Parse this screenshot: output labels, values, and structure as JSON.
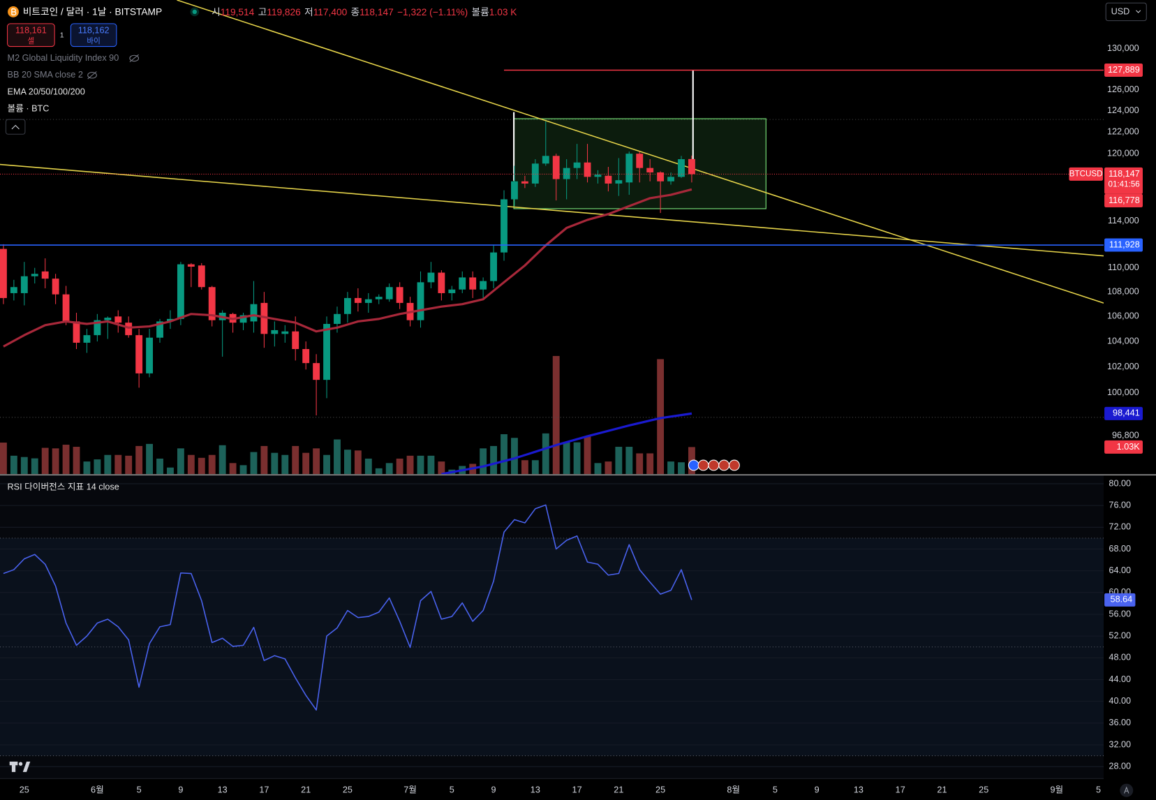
{
  "header": {
    "symbol": "비트코인 / 달러 · 1날 · BITSTAMP",
    "ohlc": [
      {
        "key": "시",
        "value": "119,514"
      },
      {
        "key": "고",
        "value": "119,826"
      },
      {
        "key": "저",
        "value": "117,400"
      },
      {
        "key": "종",
        "value": "118,147"
      }
    ],
    "change": "−1,322 (−1.11%)",
    "volume_key": "볼륨",
    "volume_value": "1.03 K",
    "sell_price": "118,161",
    "sell": "셀",
    "spread": "1",
    "buy_price": "118,162",
    "buy": "바이",
    "currency": "USD"
  },
  "indicators": [
    "M2 Global Liquidity Index 90",
    "BB 20 SMA close 2",
    "EMA 20/50/100/200",
    "볼륨 · BTC"
  ],
  "rsi_title": "RSI 다이버전스 지표 14 close",
  "chart_data": {
    "type": "candlestick",
    "log_scale": true,
    "grid": false,
    "up_color": "#089981",
    "down_color": "#f23645",
    "xlim": [
      -2.33,
      103.5
    ],
    "ylim": [
      94000,
      134910
    ],
    "xticks": [
      {
        "value": 0,
        "label": "25"
      },
      {
        "value": 7,
        "label": "6월"
      },
      {
        "value": 11,
        "label": "5"
      },
      {
        "value": 15,
        "label": "9"
      },
      {
        "value": 19,
        "label": "13"
      },
      {
        "value": 23,
        "label": "17"
      },
      {
        "value": 27,
        "label": "21"
      },
      {
        "value": 31,
        "label": "25"
      },
      {
        "value": 37,
        "label": "7월"
      },
      {
        "value": 41,
        "label": "5"
      },
      {
        "value": 45,
        "label": "9"
      },
      {
        "value": 49,
        "label": "13"
      },
      {
        "value": 53,
        "label": "17"
      },
      {
        "value": 57,
        "label": "21"
      },
      {
        "value": 61,
        "label": "25"
      },
      {
        "value": 68,
        "label": "8월"
      },
      {
        "value": 72,
        "label": "5"
      },
      {
        "value": 76,
        "label": "9"
      },
      {
        "value": 80,
        "label": "13"
      },
      {
        "value": 84,
        "label": "17"
      },
      {
        "value": 88,
        "label": "21"
      },
      {
        "value": 92,
        "label": "25"
      },
      {
        "value": 99,
        "label": "9월"
      },
      {
        "value": 103,
        "label": "5"
      }
    ],
    "yticks": [
      {
        "value": 130000,
        "label": "130,000"
      },
      {
        "value": 126000,
        "label": "126,000"
      },
      {
        "value": 124000,
        "label": "124,000"
      },
      {
        "value": 122000,
        "label": "122,000"
      },
      {
        "value": 120000,
        "label": "120,000"
      },
      {
        "value": 114000,
        "label": "114,000"
      },
      {
        "value": 110000,
        "label": "110,000"
      },
      {
        "value": 108000,
        "label": "108,000"
      },
      {
        "value": 106000,
        "label": "106,000"
      },
      {
        "value": 104000,
        "label": "104,000"
      },
      {
        "value": 102000,
        "label": "102,000"
      },
      {
        "value": 100000,
        "label": "100,000"
      },
      {
        "value": 96800,
        "label": "96,800"
      }
    ],
    "x": [
      -2,
      -1,
      0,
      1,
      2,
      3,
      4,
      5,
      6,
      7,
      8,
      9,
      10,
      11,
      12,
      13,
      14,
      15,
      16,
      17,
      18,
      19,
      20,
      21,
      22,
      23,
      24,
      25,
      26,
      27,
      28,
      29,
      30,
      31,
      32,
      33,
      34,
      35,
      36,
      37,
      38,
      39,
      40,
      41,
      42,
      43,
      44,
      45,
      46,
      47,
      48,
      49,
      50,
      51,
      52,
      53,
      54,
      55,
      56,
      57,
      58,
      59,
      60,
      61,
      62,
      63,
      64
    ],
    "open": [
      111600,
      107900,
      107900,
      109300,
      109700,
      109100,
      107800,
      105600,
      103900,
      104500,
      105700,
      106000,
      105500,
      104500,
      101500,
      104300,
      105600,
      105800,
      110300,
      110200,
      108400,
      105700,
      106200,
      105500,
      105600,
      107100,
      104600,
      104600,
      104800,
      103400,
      102300,
      101000,
      105400,
      106200,
      107500,
      107100,
      107400,
      107400,
      108400,
      107100,
      105700,
      108800,
      109600,
      107900,
      108200,
      109200,
      108200,
      108900,
      111300,
      115900,
      117500,
      117300,
      119100,
      119800,
      117700,
      118700,
      119200,
      117900,
      118000,
      117300,
      117400,
      120000,
      118700,
      118300,
      117500,
      117900,
      119514
    ],
    "high": [
      112000,
      109000,
      110500,
      110000,
      110800,
      109500,
      108500,
      106300,
      105000,
      106200,
      106000,
      106500,
      106000,
      105000,
      105000,
      105800,
      106500,
      110500,
      110400,
      110400,
      108500,
      106500,
      106300,
      106300,
      108900,
      108000,
      105600,
      105300,
      106000,
      104000,
      103000,
      106000,
      106800,
      108000,
      108300,
      107900,
      107800,
      108700,
      108800,
      107600,
      109700,
      110500,
      109800,
      108500,
      109700,
      109700,
      109200,
      111900,
      116700,
      118900,
      118000,
      119500,
      123000,
      120000,
      119500,
      120900,
      120900,
      118500,
      118800,
      119600,
      120200,
      120200,
      119500,
      118400,
      118300,
      119800,
      119826
    ],
    "low": [
      107000,
      107300,
      106900,
      108700,
      108300,
      107000,
      105300,
      103400,
      103100,
      104000,
      104200,
      104700,
      104300,
      100400,
      101200,
      103900,
      105000,
      105300,
      108400,
      108200,
      105200,
      102800,
      104700,
      104900,
      104700,
      103500,
      103600,
      103900,
      102500,
      101800,
      98300,
      99600,
      104700,
      105500,
      106400,
      106300,
      107000,
      107200,
      106600,
      105200,
      105100,
      108300,
      107300,
      107300,
      107900,
      107500,
      107500,
      108300,
      110600,
      115300,
      116900,
      117000,
      118900,
      115800,
      115900,
      117700,
      117400,
      117300,
      116600,
      116200,
      116300,
      117400,
      117500,
      114700,
      117200,
      117800,
      117400
    ],
    "close": [
      107500,
      108400,
      109300,
      109500,
      109100,
      107800,
      105600,
      103900,
      104500,
      105700,
      105900,
      105500,
      104500,
      101500,
      104300,
      105600,
      105800,
      110300,
      110100,
      108400,
      105700,
      106300,
      105500,
      106100,
      107000,
      104600,
      104900,
      104800,
      103400,
      102300,
      101000,
      105400,
      106200,
      107500,
      107100,
      107400,
      107600,
      108400,
      107100,
      105700,
      108800,
      109600,
      107900,
      108200,
      109200,
      108200,
      108900,
      111300,
      115900,
      117500,
      117300,
      119100,
      119800,
      117700,
      118700,
      119200,
      117900,
      118100,
      117300,
      117600,
      120000,
      118700,
      118300,
      117500,
      117900,
      119500,
      118147
    ],
    "volume": {
      "up_color": "#1d625a",
      "down_color": "#7a2f2f",
      "ylim": [
        0,
        5000
      ],
      "values": [
        1200,
        700,
        650,
        600,
        1000,
        980,
        1120,
        1040,
        480,
        560,
        730,
        730,
        700,
        1070,
        1150,
        590,
        250,
        980,
        730,
        620,
        730,
        1100,
        420,
        340,
        840,
        1070,
        810,
        730,
        1070,
        810,
        980,
        730,
        1320,
        930,
        900,
        590,
        220,
        420,
        590,
        700,
        700,
        700,
        480,
        170,
        310,
        390,
        980,
        1070,
        1520,
        1380,
        530,
        530,
        1550,
        4500,
        1210,
        1210,
        1430,
        420,
        480,
        1040,
        1040,
        790,
        790,
        4380,
        480,
        450,
        1030
      ]
    },
    "ema20": {
      "color": "#a8283a",
      "x": [
        -2,
        0,
        2,
        4,
        6,
        8,
        10,
        12,
        14,
        16,
        18,
        20,
        22,
        24,
        26,
        28,
        30,
        32,
        34,
        36,
        38,
        40,
        42,
        44,
        46,
        48,
        50,
        52,
        54,
        56,
        58,
        60,
        62,
        64
      ],
      "values": [
        103600,
        104500,
        105300,
        105600,
        105400,
        105600,
        105100,
        105200,
        105600,
        106200,
        106100,
        105800,
        106100,
        105800,
        105500,
        104800,
        105100,
        105600,
        105800,
        106200,
        106500,
        106800,
        107000,
        107400,
        108800,
        110200,
        111900,
        113400,
        114100,
        114600,
        115300,
        116000,
        116300,
        116778
      ]
    },
    "ema200": {
      "color": "#1a1ad0",
      "x": [
        40,
        44,
        47,
        51,
        54,
        58,
        61,
        64
      ],
      "values": [
        94000,
        94550,
        95130,
        96100,
        96750,
        97550,
        98100,
        98441
      ]
    },
    "price_tags": [
      {
        "value": 127889,
        "label": "127,889",
        "color": "#f23645",
        "line_start": 46
      },
      {
        "value": 116778,
        "label": "116,778",
        "color": "#f23645"
      },
      {
        "value": 111928,
        "label": "111,928",
        "color": "#2962ff",
        "line_start": -2.33
      },
      {
        "value": 98441,
        "label": "98,441",
        "color": "#1a1ad0"
      }
    ],
    "last_price": {
      "symbol": "BTCUSD",
      "value": 118147,
      "label": "118,147",
      "countdown": "01:41:56",
      "color": "#f23645"
    },
    "volume_tag": {
      "value": 1030,
      "label": "1.03K",
      "color": "#f23645"
    },
    "rsi": {
      "color": "#4a63f0",
      "ylim": [
        25.8,
        81.5
      ],
      "grid": true,
      "bands": [
        70,
        50,
        30
      ],
      "band_fill": "#0a111c",
      "yticks": [
        {
          "value": 80,
          "label": "80.00"
        },
        {
          "value": 76,
          "label": "76.00"
        },
        {
          "value": 72,
          "label": "72.00"
        },
        {
          "value": 68,
          "label": "68.00"
        },
        {
          "value": 64,
          "label": "64.00"
        },
        {
          "value": 60,
          "label": "60.00"
        },
        {
          "value": 56,
          "label": "56.00"
        },
        {
          "value": 52,
          "label": "52.00"
        },
        {
          "value": 48,
          "label": "48.00"
        },
        {
          "value": 44,
          "label": "44.00"
        },
        {
          "value": 40,
          "label": "40.00"
        },
        {
          "value": 36,
          "label": "36.00"
        },
        {
          "value": 32,
          "label": "32.00"
        },
        {
          "value": 28,
          "label": "28.00"
        }
      ],
      "values": [
        63.5,
        64.2,
        66.2,
        67.0,
        65.2,
        61.2,
        54.4,
        50.3,
        52.0,
        54.4,
        55.1,
        53.7,
        51.3,
        42.6,
        50.6,
        53.7,
        54.1,
        63.6,
        63.5,
        58.5,
        50.8,
        51.6,
        50.1,
        50.3,
        53.6,
        47.5,
        48.4,
        47.8,
        44.3,
        41.1,
        38.4,
        52.0,
        53.5,
        56.7,
        55.4,
        55.6,
        56.4,
        59.0,
        54.7,
        49.9,
        58.5,
        60.2,
        55.1,
        55.6,
        58.1,
        54.7,
        56.7,
        62.1,
        71.1,
        73.4,
        72.8,
        75.4,
        76.1,
        68.0,
        69.6,
        70.4,
        65.6,
        65.2,
        63.2,
        63.5,
        68.8,
        64.2,
        61.9,
        59.7,
        60.4,
        64.2,
        58.64
      ],
      "tag": {
        "value": 58.64
      }
    }
  }
}
